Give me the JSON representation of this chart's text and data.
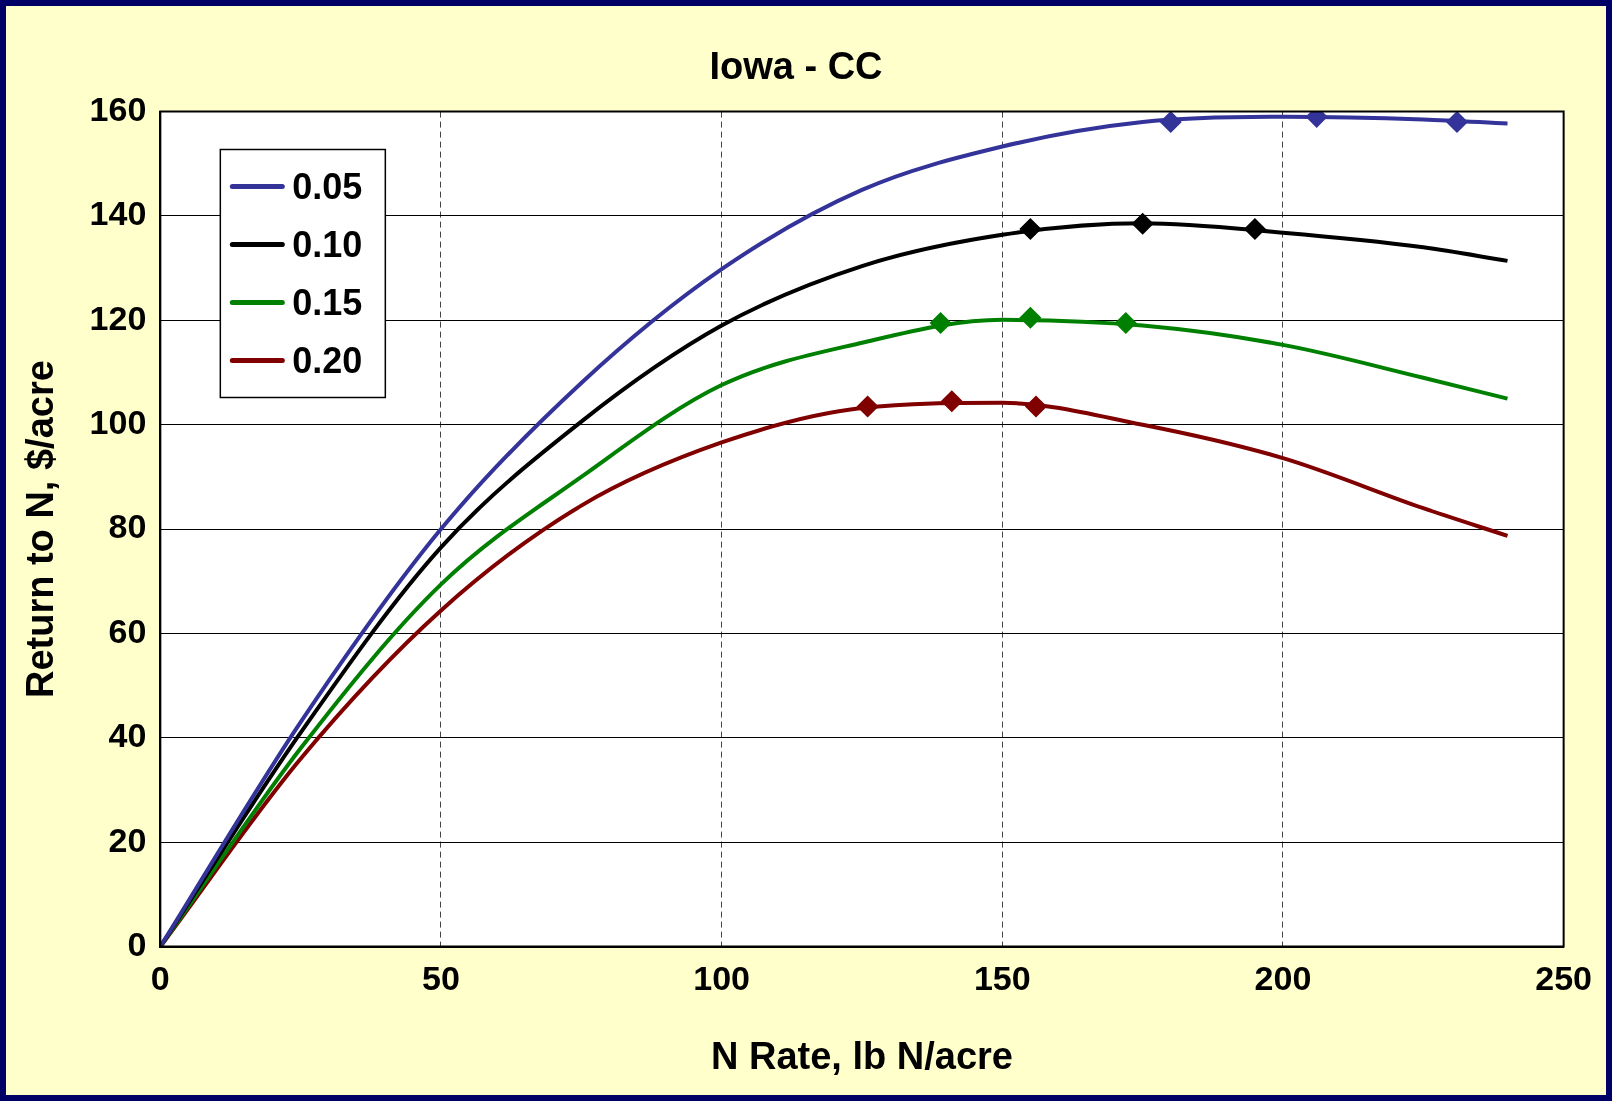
{
  "chart_data": {
    "type": "line",
    "title": "Iowa - CC",
    "xlabel": "N Rate, lb N/acre",
    "ylabel": "Return to N, $/acre",
    "xlim": [
      0,
      250
    ],
    "xticks": [
      0,
      50,
      100,
      150,
      200,
      250
    ],
    "ylim": [
      0,
      160
    ],
    "yticks": [
      0,
      20,
      40,
      60,
      80,
      100,
      120,
      140,
      160
    ],
    "grid": true,
    "legend": "top left",
    "marker": "none",
    "line_style": "solid",
    "x": [
      0,
      25,
      50,
      75,
      100,
      125,
      150,
      175,
      200,
      225,
      240
    ],
    "series": [
      {
        "name": "0.05",
        "color": "#333399",
        "values": [
          0,
          43,
          80,
          108,
          129.8,
          145,
          153.3,
          158,
          159,
          158.5,
          157.7
        ]
      },
      {
        "name": "0.10",
        "color": "#000000",
        "values": [
          0,
          41,
          76.5,
          100.6,
          119,
          130.4,
          136.4,
          138.6,
          136.8,
          134,
          131.4
        ]
      },
      {
        "name": "0.15",
        "color": "#008000",
        "values": [
          0,
          38,
          69.4,
          90,
          107.6,
          115.7,
          120.1,
          119,
          115.3,
          109,
          105
        ]
      },
      {
        "name": "0.20",
        "color": "#800000",
        "values": [
          0,
          36,
          64.4,
          84.5,
          96.6,
          103.2,
          104.2,
          100,
          93.6,
          84,
          78.7
        ]
      },
      {
        "type": "scatter",
        "marker": "diamond",
        "color": "#333399",
        "x": [
          180,
          206,
          231
        ],
        "values": [
          158,
          159,
          158
        ]
      },
      {
        "type": "scatter",
        "marker": "diamond",
        "color": "#000000",
        "x": [
          155,
          175,
          195
        ],
        "values": [
          137.5,
          138.5,
          137.5
        ]
      },
      {
        "type": "scatter",
        "marker": "diamond",
        "color": "#008000",
        "x": [
          139,
          155,
          172
        ],
        "values": [
          119.5,
          120.5,
          119.5
        ]
      },
      {
        "type": "scatter",
        "marker": "diamond",
        "color": "#800000",
        "x": [
          126,
          141,
          156
        ],
        "values": [
          103.5,
          104.5,
          103.5
        ]
      }
    ]
  }
}
